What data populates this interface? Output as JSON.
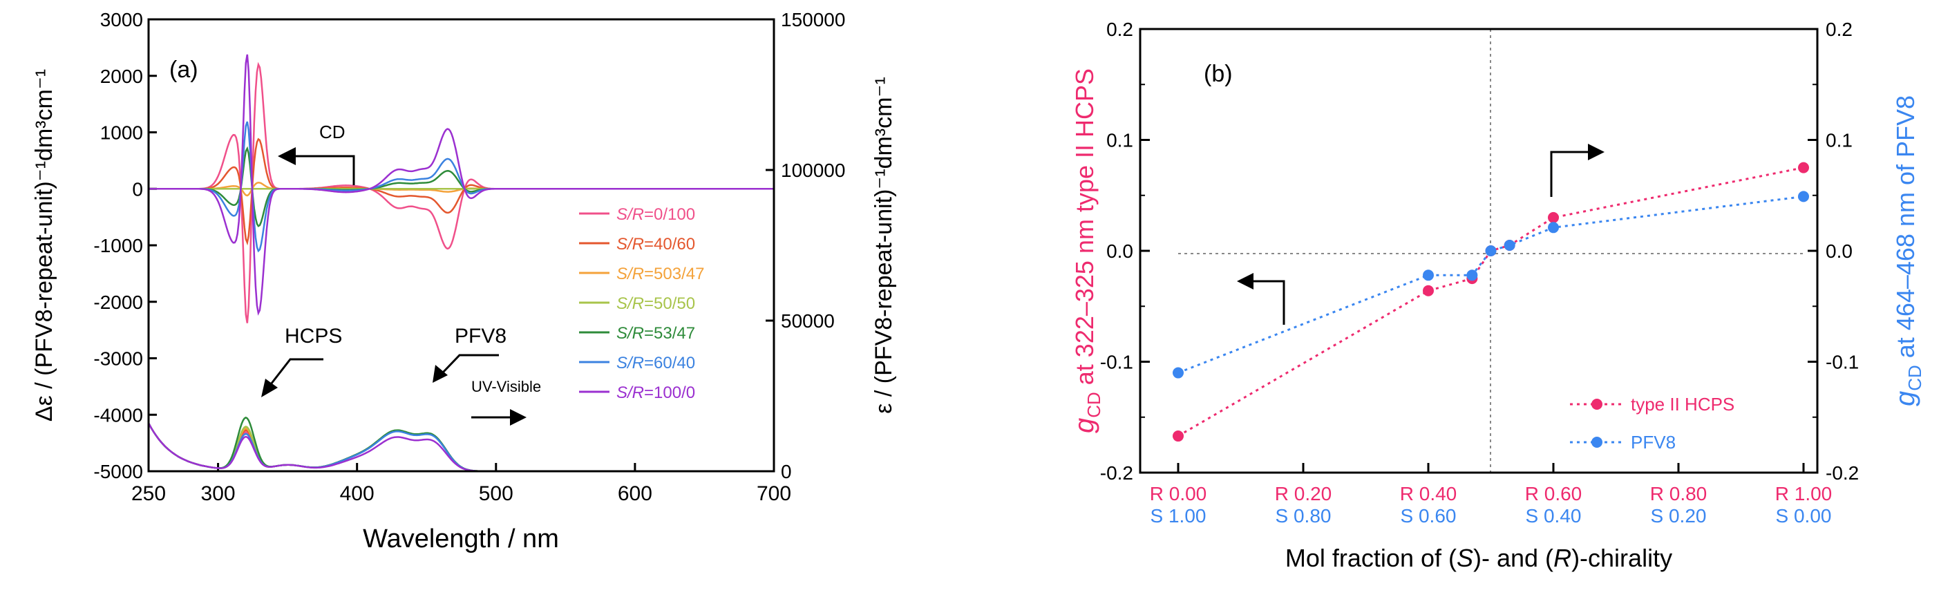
{
  "chart_data": [
    {
      "panel": "(a)",
      "type": "line",
      "xlabel": "Wavelength / nm",
      "ylabel_left": "Δε / (PFV8-repeat-unit)⁻¹dm³cm⁻¹",
      "ylabel_right": "ε / (PFV8-repeat-unit)⁻¹dm³cm⁻¹",
      "xlim": [
        250,
        700
      ],
      "ylim_left": [
        -5000,
        3000
      ],
      "ylim_right": [
        0,
        150000
      ],
      "xticks": [
        250,
        300,
        400,
        500,
        600,
        700
      ],
      "xtick_labels": [
        "250",
        "300",
        "400",
        "500",
        "600",
        "700"
      ],
      "yticks_left": [
        3000,
        2000,
        1000,
        0,
        -1000,
        -2000,
        -3000,
        -4000,
        -5000
      ],
      "ytick_labels_left": [
        "3000",
        "2000",
        "1000",
        "0",
        "-1000",
        "-2000",
        "-3000",
        "-4000",
        "-5000"
      ],
      "yticks_right": [
        150000,
        100000,
        50000,
        0
      ],
      "ytick_labels_right": [
        "150000",
        "100000",
        "50000",
        "0"
      ],
      "annotations": {
        "cd": "CD",
        "hcps": "HCPS",
        "pfv8": "PFV8",
        "uv": "UV-Visible"
      },
      "legend_position": "right",
      "series": [
        {
          "name_italic": "S/R",
          "name_rest": "=0/100",
          "color": "#f0508a",
          "cd_scale": -1.0,
          "uv_hcps": 1.05,
          "uv_pfv8": 1.0
        },
        {
          "name_italic": "S/R",
          "name_rest": "=40/60",
          "color": "#e4572e",
          "cd_scale": -0.4,
          "uv_hcps": 1.1,
          "uv_pfv8": 1.0
        },
        {
          "name_italic": "S/R",
          "name_rest": "=503/47",
          "color": "#f4a23a",
          "cd_scale": -0.05,
          "uv_hcps": 1.15,
          "uv_pfv8": 1.01
        },
        {
          "name_italic": "S/R",
          "name_rest": "=50/50",
          "color": "#a8c44a",
          "cd_scale": 0.0,
          "uv_hcps": 1.2,
          "uv_pfv8": 1.01
        },
        {
          "name_italic": "S/R",
          "name_rest": "=53/47",
          "color": "#2e8b3a",
          "cd_scale": 0.3,
          "uv_hcps": 1.45,
          "uv_pfv8": 1.02
        },
        {
          "name_italic": "S/R",
          "name_rest": "=60/40",
          "color": "#3b82e0",
          "cd_scale": 0.5,
          "uv_hcps": 1.0,
          "uv_pfv8": 0.99
        },
        {
          "name_italic": "S/R",
          "name_rest": "=100/0",
          "color": "#9b30d0",
          "cd_scale": 1.0,
          "uv_hcps": 0.92,
          "uv_pfv8": 0.85
        }
      ]
    },
    {
      "panel": "(b)",
      "type": "line",
      "xlabel_parts": [
        "Mol fraction of (",
        "S",
        ")- and (",
        "R",
        ")-chirality"
      ],
      "ylabel_left": "g_CD at 322–325 nm type II HCPS",
      "ylabel_right": "g_CD at 464–468 nm of PFV8",
      "xlim": [
        0,
        1
      ],
      "ylim_left": [
        -0.2,
        0.2
      ],
      "ylim_right": [
        -0.2,
        0.2
      ],
      "yticks": [
        0.2,
        0.1,
        0.0,
        -0.1,
        -0.2
      ],
      "ytick_labels": [
        "0.2",
        "0.1",
        "0.0",
        "-0.1",
        "-0.2"
      ],
      "xtick_positions": [
        0,
        0.2,
        0.4,
        0.6,
        0.8,
        1.0
      ],
      "xtick_labels_R": [
        "R 0.00",
        "R 0.20",
        "R 0.40",
        "R 0.60",
        "R 0.80",
        "R 1.00"
      ],
      "xtick_labels_S": [
        "S 1.00",
        "S 0.80",
        "S 0.60",
        "S 0.40",
        "S 0.20",
        "S 0.00"
      ],
      "r_color": "#ee2a6e",
      "s_color": "#3a86f0",
      "legend_position": "bottom-right",
      "series": [
        {
          "name": "type II HCPS",
          "color": "#ee2a6e",
          "x": [
            0,
            0.4,
            0.47,
            0.5,
            0.53,
            0.6,
            1.0
          ],
          "y": [
            -0.167,
            -0.036,
            -0.025,
            0.0,
            0.005,
            0.03,
            0.075
          ]
        },
        {
          "name": "PFV8",
          "color": "#3a86f0",
          "x": [
            0,
            0.4,
            0.47,
            0.5,
            0.53,
            0.6,
            1.0
          ],
          "y": [
            -0.11,
            -0.022,
            -0.022,
            0.0,
            0.005,
            0.021,
            0.049
          ]
        }
      ]
    }
  ]
}
